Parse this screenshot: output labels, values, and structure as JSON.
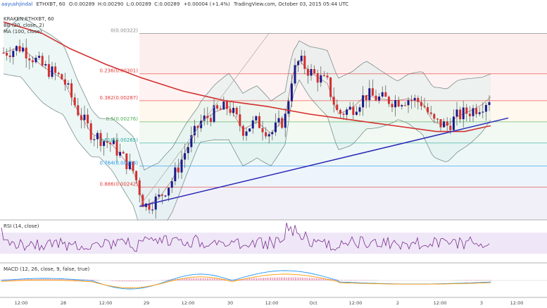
{
  "header": {
    "author": "aayushjindal",
    "text": "ETHXBT, 60  O:0.00289 H:0.00290 L:0.00289 C:0.00289  +0.00004 (+1.4%)  TradingView.com, October 03, 2015 05:44 UTC",
    "change_text": "+0.00004 (+1.4%)",
    "published": "TradingView.com, October 03, 2015 05:44 UTC",
    "ohlc": {
      "o": "0.00289",
      "h": "0.00290",
      "l": "0.00289",
      "c": "0.00289"
    }
  },
  "legend": {
    "symbol": "ETHXBT, 60, KRAKEN",
    "series": "KRAKEN:ETHXBT, 60",
    "bb": "BB (20, close, 2)",
    "ma": "MA (100, close)"
  },
  "fib_levels": [
    {
      "ratio": "0",
      "label": "0(0.00322)",
      "value": 0.00322,
      "color": "#888888"
    },
    {
      "ratio": "0.236",
      "label": "0.236(0.00301)",
      "value": 0.00301,
      "color": "#e53935"
    },
    {
      "ratio": "0.382",
      "label": "0.382(0.00287)",
      "value": 0.00287,
      "color": "#e53935"
    },
    {
      "ratio": "0.5",
      "label": "0.5(0.00276)",
      "value": 0.00276,
      "color": "#4caf50"
    },
    {
      "ratio": "0.618",
      "label": "0.618(0.00265)",
      "value": 0.00265,
      "color": "#26a69a"
    },
    {
      "ratio": "0.764",
      "label": "0.764(0.00253)",
      "value": 0.00253,
      "color": "#2196f3"
    },
    {
      "ratio": "0.886",
      "label": "0.886(0.00242)",
      "value": 0.00242,
      "color": "#e53935"
    }
  ],
  "rsi_label": "RSI (14, close)",
  "macd_label": "MACD (12, 26, close, 9, false, true)",
  "time_axis": [
    "12:00",
    "28",
    "12:00",
    "29",
    "12:00",
    "30",
    "12:00",
    "Oct",
    "12:00",
    "2",
    "12:00",
    "3",
    "12:00"
  ],
  "colors": {
    "up": "#333333",
    "down": "#d32f2f",
    "body_up": "#1a1a8c",
    "ma": "#d32f2f",
    "bb": "#7a8f8f",
    "trend": "#2a2ab8",
    "rsi": "#7a2f8f",
    "macd": "#2196f3",
    "signal": "#ff9800",
    "hist": "#e06090"
  },
  "chart_data": {
    "type": "candlestick",
    "price_range": [
      0.00225,
      0.00335
    ],
    "fib_retracement": [
      0.00322,
      0.00301,
      0.00287,
      0.00276,
      0.00265,
      0.00253,
      0.00242
    ]
  }
}
